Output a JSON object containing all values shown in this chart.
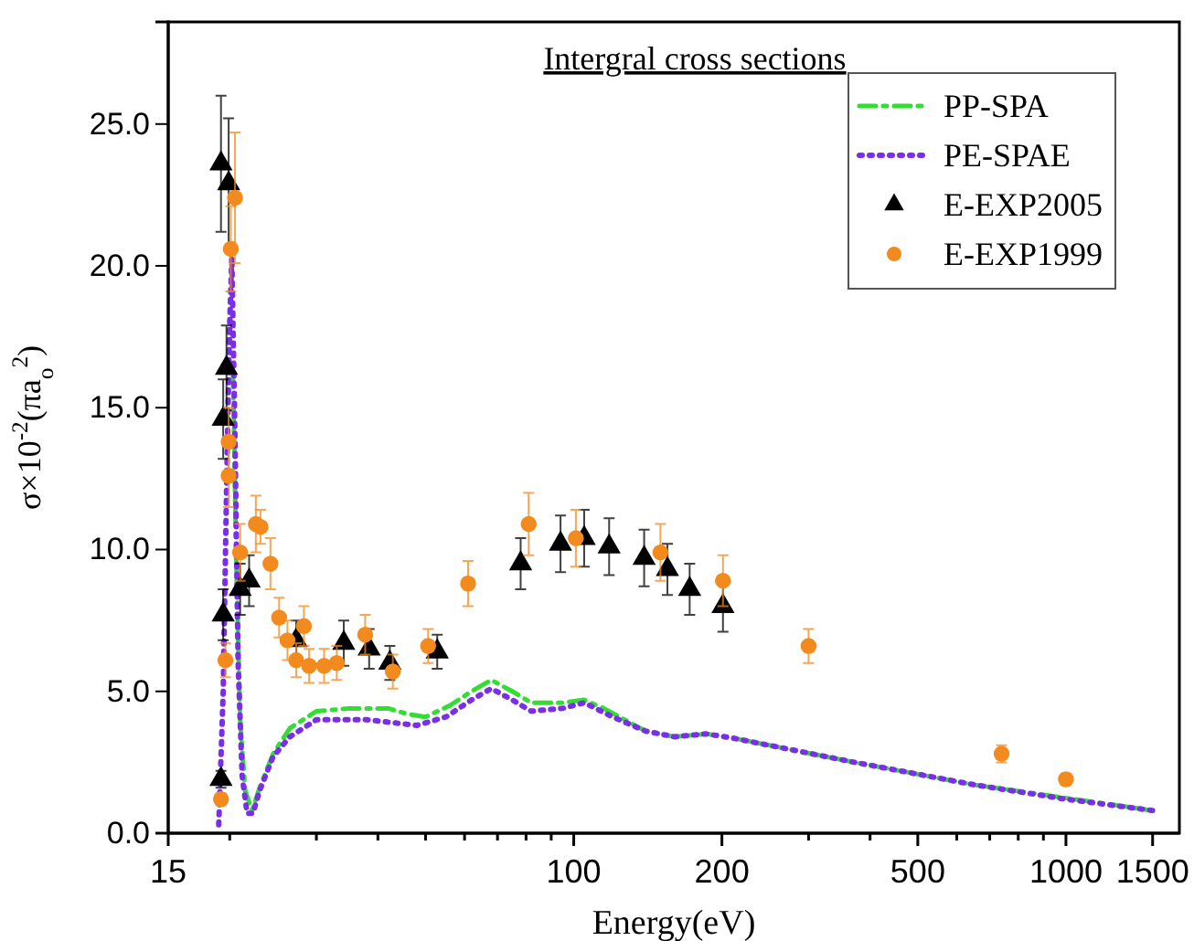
{
  "chart_data": {
    "type": "line",
    "title": "Intergral cross sections",
    "xlabel": "Energy(eV)",
    "ylabel": "σ×10$^{-2}$(πa$_{o}$$^{2}$)",
    "log": "x",
    "xlim": [
      15,
      1700
    ],
    "ylim": [
      0,
      28.6
    ],
    "xticks": [
      15,
      {
        "value": 20,
        "label": null
      },
      {
        "value": 30,
        "label": null
      },
      {
        "value": 40,
        "label": null
      },
      {
        "value": 50,
        "label": null
      },
      {
        "value": 60,
        "label": null
      },
      {
        "value": 70,
        "label": null
      },
      {
        "value": 80,
        "label": null
      },
      {
        "value": 90,
        "label": null
      },
      100,
      200,
      {
        "value": 300,
        "label": null
      },
      {
        "value": 400,
        "label": null
      },
      500,
      {
        "value": 600,
        "label": null
      },
      {
        "value": 700,
        "label": null
      },
      {
        "value": 800,
        "label": null
      },
      {
        "value": 900,
        "label": null
      },
      1000,
      1500
    ],
    "yticks": [
      {
        "value": 0,
        "label": "0.0"
      },
      {
        "value": 5,
        "label": "5.0"
      },
      {
        "value": 10,
        "label": "10.0"
      },
      {
        "value": 15,
        "label": "15.0"
      },
      {
        "value": 20,
        "label": "20.0"
      },
      {
        "value": 25,
        "label": "25.0"
      }
    ],
    "grid": false,
    "legend": "top right",
    "series": [
      {
        "name": "PP-SPA",
        "type": "line",
        "line_style": "dashdot",
        "color": "#33dd33",
        "x": [
          20.3,
          20.6,
          21.0,
          21.5,
          22.2,
          23,
          24.5,
          26.5,
          30,
          35,
          42,
          46,
          50,
          56,
          62,
          68,
          75,
          82,
          95,
          105,
          115,
          140,
          160,
          186,
          211,
          372,
          655,
          1500
        ],
        "values": [
          16.3,
          10,
          4,
          1.5,
          0.8,
          1.6,
          2.8,
          3.7,
          4.3,
          4.4,
          4.4,
          4.2,
          4.1,
          4.5,
          5.0,
          5.4,
          5.0,
          4.6,
          4.6,
          4.7,
          4.4,
          3.6,
          3.4,
          3.5,
          3.35,
          2.5,
          1.7,
          0.8
        ]
      },
      {
        "name": "PE-SPAE",
        "type": "line",
        "line_style": "dotted",
        "color": "#7a2ee8",
        "x": [
          19.0,
          19.4,
          19.7,
          20.0,
          20.2,
          20.5,
          20.8,
          21.2,
          21.7,
          22.3,
          23.0,
          24.5,
          26.5,
          30,
          38,
          48,
          55,
          62,
          68,
          75,
          82,
          95,
          105,
          120,
          140,
          160,
          186,
          211,
          372,
          655,
          1000,
          1500
        ],
        "values": [
          0.3,
          5,
          12,
          18,
          20.3,
          14,
          6,
          2,
          0.7,
          0.7,
          1.5,
          2.7,
          3.4,
          4.0,
          4.0,
          3.8,
          4.1,
          4.7,
          5.1,
          4.7,
          4.3,
          4.4,
          4.6,
          4.1,
          3.6,
          3.4,
          3.5,
          3.35,
          2.5,
          1.7,
          1.2,
          0.8
        ]
      },
      {
        "name": "E-EXP2005",
        "type": "scatter",
        "marker": "triangle",
        "color": "#000000",
        "x": [
          19.2,
          19.9,
          19.7,
          19.4,
          19.4,
          19.2,
          21.0,
          21.9,
          27.3,
          34.1,
          38.4,
          42.3,
          52.8,
          78,
          94,
          105,
          118,
          139,
          155,
          172,
          201
        ],
        "values": [
          23.6,
          22.9,
          16.4,
          14.6,
          7.7,
          1.9,
          8.6,
          8.9,
          6.8,
          6.7,
          6.5,
          6.0,
          6.4,
          9.5,
          10.2,
          10.4,
          10.1,
          9.7,
          9.3,
          8.6,
          8.0
        ],
        "errors": [
          2.4,
          2.3,
          1.5,
          1.4,
          0.9,
          0.3,
          0.9,
          0.9,
          0.7,
          0.8,
          0.7,
          0.6,
          0.6,
          0.9,
          1.0,
          1.0,
          1.0,
          1.0,
          0.9,
          0.9,
          0.9
        ]
      },
      {
        "name": "E-EXP1999",
        "type": "scatter",
        "marker": "circle",
        "color": "#f28a1e",
        "x": [
          20.5,
          20.1,
          19.9,
          19.9,
          19.6,
          19.2,
          21.0,
          22.6,
          23.1,
          24.2,
          25.2,
          26.2,
          27.3,
          28.3,
          29.0,
          31.1,
          33.0,
          37.7,
          42.9,
          50.6,
          61,
          81,
          101,
          150,
          201,
          300,
          740,
          1000
        ],
        "values": [
          22.4,
          20.6,
          13.8,
          12.6,
          6.1,
          1.2,
          9.9,
          10.9,
          10.8,
          9.5,
          7.6,
          6.8,
          6.1,
          7.3,
          5.9,
          5.9,
          6.0,
          7.0,
          5.7,
          6.6,
          8.8,
          10.9,
          10.4,
          9.9,
          8.9,
          6.6,
          2.8,
          1.9
        ],
        "errors": [
          2.3,
          1.5,
          1.2,
          1.1,
          0.6,
          0.2,
          1.0,
          1.0,
          0.6,
          0.9,
          0.7,
          0.7,
          0.6,
          0.7,
          0.6,
          0.6,
          0.6,
          0.7,
          0.6,
          0.6,
          0.8,
          1.1,
          1.0,
          1.0,
          0.9,
          0.6,
          0.3,
          0.2
        ]
      }
    ]
  }
}
